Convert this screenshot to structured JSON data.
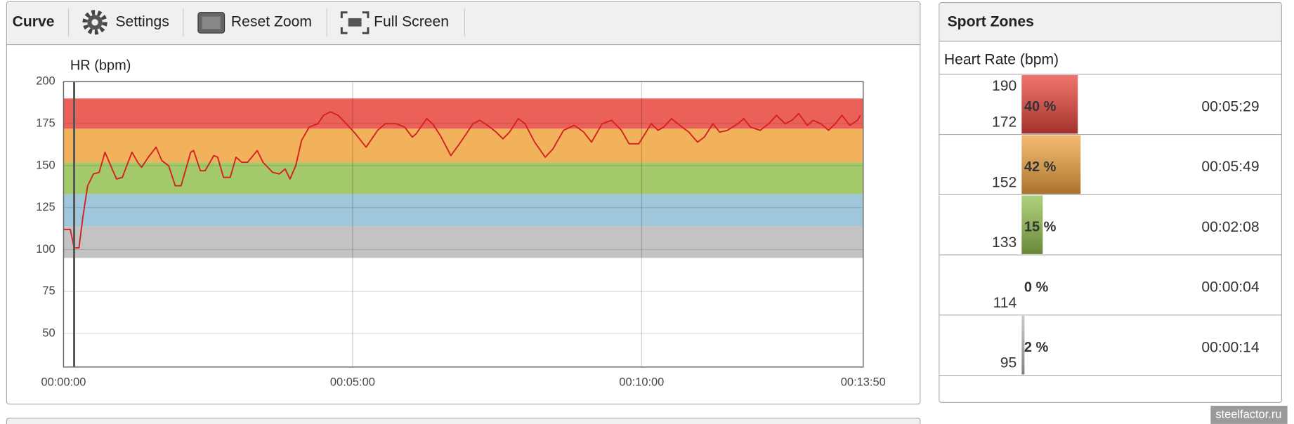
{
  "toolbar": {
    "title": "Curve",
    "buttons": [
      "Settings",
      "Reset Zoom",
      "Full Screen"
    ]
  },
  "chart_data": {
    "type": "line",
    "y_axis_label": "HR (bpm)",
    "xlim": [
      0,
      830
    ],
    "xticks": [
      {
        "value": 0,
        "label": "00:00:00"
      },
      {
        "value": 300,
        "label": "00:05:00"
      },
      {
        "value": 600,
        "label": "00:10:00"
      },
      {
        "value": 830,
        "label": "00:13:50"
      }
    ],
    "ylim": [
      30,
      200
    ],
    "yticks": [
      50,
      75,
      100,
      125,
      150,
      175,
      200
    ],
    "grid": true,
    "cursor_x": 11,
    "series": [
      {
        "name": "HR",
        "color": "#d42020",
        "x": [
          0,
          7,
          11,
          16,
          20,
          25,
          31,
          37,
          43,
          49,
          55,
          61,
          71,
          77,
          81,
          88,
          96,
          102,
          109,
          116,
          122,
          132,
          135,
          142,
          147,
          156,
          160,
          166,
          173,
          179,
          185,
          191,
          201,
          207,
          217,
          224,
          230,
          235,
          241,
          247,
          255,
          264,
          270,
          277,
          285,
          295,
          303,
          314,
          326,
          334,
          345,
          354,
          362,
          366,
          377,
          383,
          391,
          402,
          411,
          425,
          432,
          440,
          449,
          456,
          463,
          472,
          479,
          489,
          500,
          508,
          519,
          530,
          540,
          548,
          559,
          569,
          579,
          587,
          597,
          610,
          617,
          623,
          631,
          642,
          649,
          658,
          665,
          674,
          681,
          689,
          700,
          706,
          713,
          723,
          732,
          740,
          749,
          756,
          763,
          772,
          778,
          786,
          794,
          801,
          808,
          816,
          824,
          827
        ],
        "values": [
          112,
          112,
          101,
          101,
          119,
          138,
          145,
          146,
          158,
          150,
          142,
          143,
          158,
          152,
          149,
          155,
          161,
          153,
          150,
          138,
          138,
          158,
          159,
          147,
          147,
          156,
          155,
          143,
          143,
          155,
          152,
          152,
          159,
          152,
          146,
          145,
          148,
          142,
          150,
          165,
          173,
          175,
          180,
          182,
          180,
          174,
          169,
          161,
          171,
          175,
          175,
          173,
          167,
          169,
          178,
          175,
          168,
          156,
          163,
          175,
          177,
          174,
          170,
          166,
          170,
          178,
          175,
          164,
          155,
          160,
          171,
          174,
          170,
          164,
          175,
          177,
          171,
          163,
          163,
          175,
          171,
          173,
          178,
          173,
          170,
          164,
          167,
          175,
          170,
          171,
          175,
          178,
          173,
          171,
          175,
          180,
          175,
          177,
          181,
          174,
          177,
          175,
          171,
          175,
          180,
          174,
          177,
          180
        ]
      }
    ]
  },
  "sport_zones": {
    "title": "Sport Zones",
    "header": "Heart Rate (bpm)",
    "rows": [
      {
        "upper": 190,
        "lower": 172,
        "percent": 40,
        "percent_label": "40 %",
        "time": "00:05:29",
        "color": "#e8453c"
      },
      {
        "lower": 152,
        "percent": 42,
        "percent_label": "42 %",
        "time": "00:05:49",
        "color": "#f0a440"
      },
      {
        "lower": 133,
        "percent": 15,
        "percent_label": "15 %",
        "time": "00:02:08",
        "color": "#94c050"
      },
      {
        "lower": 114,
        "percent": 0,
        "percent_label": "0 %",
        "time": "00:00:04",
        "color": "#8ebcd4"
      },
      {
        "lower": 95,
        "percent": 2,
        "percent_label": "2 %",
        "time": "00:00:14",
        "color": "#b8b8b8"
      }
    ]
  },
  "watermark": "steelfactor.ru"
}
